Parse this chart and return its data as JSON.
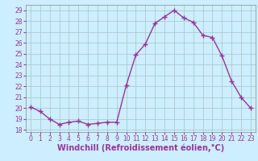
{
  "x": [
    0,
    1,
    2,
    3,
    4,
    5,
    6,
    7,
    8,
    9,
    10,
    11,
    12,
    13,
    14,
    15,
    16,
    17,
    18,
    19,
    20,
    21,
    22,
    23
  ],
  "y": [
    20.1,
    19.7,
    19.0,
    18.5,
    18.7,
    18.8,
    18.5,
    18.6,
    18.7,
    18.7,
    22.1,
    24.9,
    25.9,
    27.8,
    28.4,
    29.0,
    28.3,
    27.9,
    26.7,
    26.5,
    24.8,
    22.5,
    21.0,
    20.0
  ],
  "line_color": "#993399",
  "marker": "+",
  "marker_size": 4,
  "marker_linewidth": 1.0,
  "xlabel": "Windchill (Refroidissement éolien,°C)",
  "xlabel_fontsize": 7,
  "ylim": [
    17.8,
    29.5
  ],
  "xlim": [
    -0.5,
    23.5
  ],
  "yticks": [
    18,
    19,
    20,
    21,
    22,
    23,
    24,
    25,
    26,
    27,
    28,
    29
  ],
  "xticks": [
    0,
    1,
    2,
    3,
    4,
    5,
    6,
    7,
    8,
    9,
    10,
    11,
    12,
    13,
    14,
    15,
    16,
    17,
    18,
    19,
    20,
    21,
    22,
    23
  ],
  "background_color": "#cceeff",
  "grid_color": "#aacccc",
  "tick_fontsize": 5.5,
  "line_width": 1.0
}
